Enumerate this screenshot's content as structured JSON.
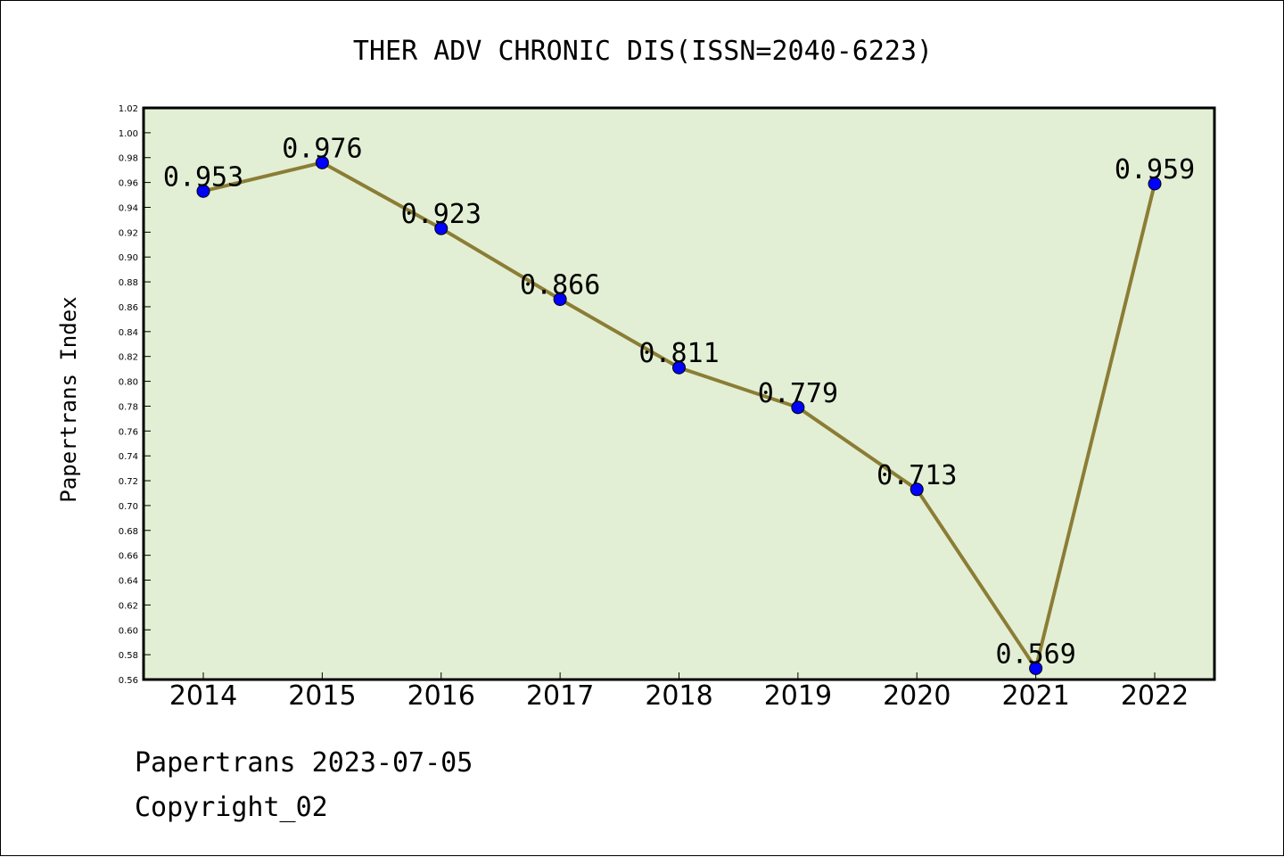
{
  "chart_data": {
    "type": "line",
    "title": "THER ADV CHRONIC DIS(ISSN=2040-6223)",
    "ylabel": "Papertrans Index",
    "xlabel": "",
    "categories": [
      "2014",
      "2015",
      "2016",
      "2017",
      "2018",
      "2019",
      "2020",
      "2021",
      "2022"
    ],
    "values": [
      0.953,
      0.976,
      0.923,
      0.866,
      0.811,
      0.779,
      0.713,
      0.569,
      0.959
    ],
    "data_labels": [
      "0.953",
      "0.976",
      "0.923",
      "0.866",
      "0.811",
      "0.779",
      "0.713",
      "0.569",
      "0.959"
    ],
    "ylim": [
      0.56,
      1.02
    ],
    "yticks": [
      "0.56",
      "0.58",
      "0.60",
      "0.62",
      "0.64",
      "0.66",
      "0.68",
      "0.70",
      "0.72",
      "0.74",
      "0.76",
      "0.78",
      "0.80",
      "0.82",
      "0.84",
      "0.86",
      "0.88",
      "0.90",
      "0.92",
      "0.94",
      "0.96",
      "0.98",
      "1.00",
      "1.02"
    ],
    "grid": false,
    "colors": {
      "plot_background": "#e2efd4",
      "line": "#8b7d35",
      "marker": "#0000ff"
    }
  },
  "footer": {
    "line1": "Papertrans 2023-07-05",
    "line2": "Copyright_02"
  }
}
